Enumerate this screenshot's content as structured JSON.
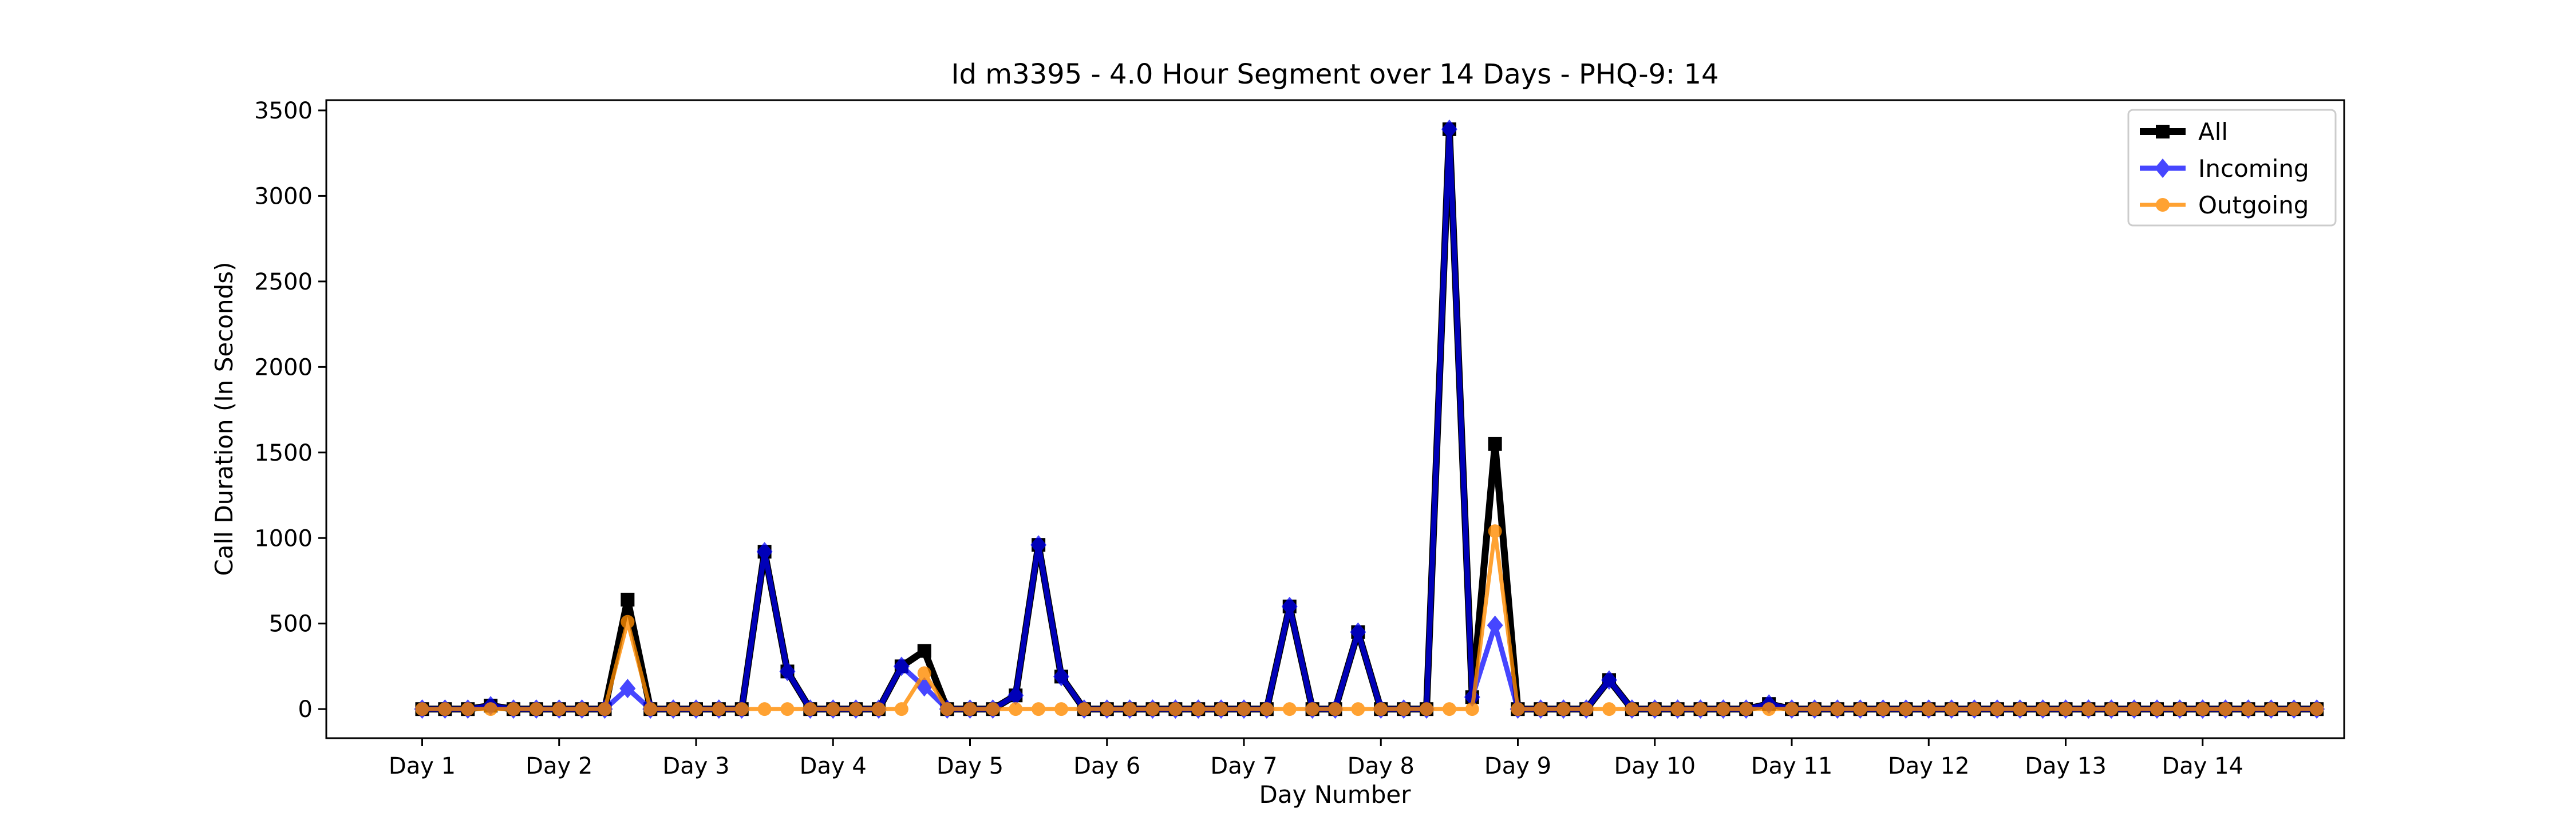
{
  "chart_data": {
    "type": "line",
    "title": "Id m3395 - 4.0 Hour Segment over 14 Days - PHQ-9: 14",
    "xlabel": "Day Number",
    "ylabel": "Call Duration (In Seconds)",
    "ylim": [
      -170,
      3560
    ],
    "yticks": [
      0,
      500,
      1000,
      1500,
      2000,
      2500,
      3000,
      3500
    ],
    "xlim": [
      -4.2,
      84.2
    ],
    "xtick_positions": [
      0,
      6,
      12,
      18,
      24,
      30,
      36,
      42,
      48,
      54,
      60,
      66,
      72,
      78
    ],
    "xtick_labels": [
      "Day 1",
      "Day 2",
      "Day 3",
      "Day 4",
      "Day 5",
      "Day 6",
      "Day 7",
      "Day 8",
      "Day 9",
      "Day 10",
      "Day 11",
      "Day 12",
      "Day 13",
      "Day 14"
    ],
    "x": [
      0,
      1,
      2,
      3,
      4,
      5,
      6,
      7,
      8,
      9,
      10,
      11,
      12,
      13,
      14,
      15,
      16,
      17,
      18,
      19,
      20,
      21,
      22,
      23,
      24,
      25,
      26,
      27,
      28,
      29,
      30,
      31,
      32,
      33,
      34,
      35,
      36,
      37,
      38,
      39,
      40,
      41,
      42,
      43,
      44,
      45,
      46,
      47,
      48,
      49,
      50,
      51,
      52,
      53,
      54,
      55,
      56,
      57,
      58,
      59,
      60,
      61,
      62,
      63,
      64,
      65,
      66,
      67,
      68,
      69,
      70,
      71,
      72,
      73,
      74,
      75,
      76,
      77,
      78,
      79,
      80,
      81,
      82,
      83
    ],
    "legend": "top-right",
    "grid": false,
    "series": [
      {
        "name": "All",
        "color": "#000000",
        "marker": "square",
        "values": [
          0,
          0,
          0,
          20,
          0,
          0,
          0,
          0,
          0,
          640,
          0,
          0,
          0,
          0,
          0,
          920,
          220,
          0,
          0,
          0,
          0,
          250,
          340,
          0,
          0,
          0,
          80,
          960,
          190,
          0,
          0,
          0,
          0,
          0,
          0,
          0,
          0,
          0,
          600,
          0,
          0,
          450,
          0,
          0,
          0,
          3390,
          70,
          1550,
          0,
          0,
          0,
          0,
          170,
          0,
          0,
          0,
          0,
          0,
          0,
          30,
          0,
          0,
          0,
          0,
          0,
          0,
          0,
          0,
          0,
          0,
          0,
          0,
          0,
          0,
          0,
          0,
          0,
          0,
          0,
          0,
          0,
          0,
          0,
          0
        ]
      },
      {
        "name": "Incoming",
        "color": "#0000ff",
        "marker": "diamond",
        "values": [
          0,
          0,
          0,
          20,
          0,
          0,
          0,
          0,
          0,
          120,
          0,
          0,
          0,
          0,
          0,
          920,
          220,
          0,
          0,
          0,
          0,
          250,
          130,
          0,
          0,
          0,
          80,
          960,
          190,
          0,
          0,
          0,
          0,
          0,
          0,
          0,
          0,
          0,
          600,
          0,
          0,
          450,
          0,
          0,
          0,
          3390,
          70,
          490,
          0,
          0,
          0,
          0,
          170,
          0,
          0,
          0,
          0,
          0,
          0,
          30,
          0,
          0,
          0,
          0,
          0,
          0,
          0,
          0,
          0,
          0,
          0,
          0,
          0,
          0,
          0,
          0,
          0,
          0,
          0,
          0,
          0,
          0,
          0,
          0
        ]
      },
      {
        "name": "Outgoing",
        "color": "#ff8c00",
        "marker": "circle",
        "values": [
          0,
          0,
          0,
          0,
          0,
          0,
          0,
          0,
          0,
          510,
          0,
          0,
          0,
          0,
          0,
          0,
          0,
          0,
          0,
          0,
          0,
          0,
          210,
          0,
          0,
          0,
          0,
          0,
          0,
          0,
          0,
          0,
          0,
          0,
          0,
          0,
          0,
          0,
          0,
          0,
          0,
          0,
          0,
          0,
          0,
          0,
          0,
          1040,
          0,
          0,
          0,
          0,
          0,
          0,
          0,
          0,
          0,
          0,
          0,
          0,
          0,
          0,
          0,
          0,
          0,
          0,
          0,
          0,
          0,
          0,
          0,
          0,
          0,
          0,
          0,
          0,
          0,
          0,
          0,
          0,
          0,
          0,
          0,
          0
        ]
      }
    ]
  }
}
